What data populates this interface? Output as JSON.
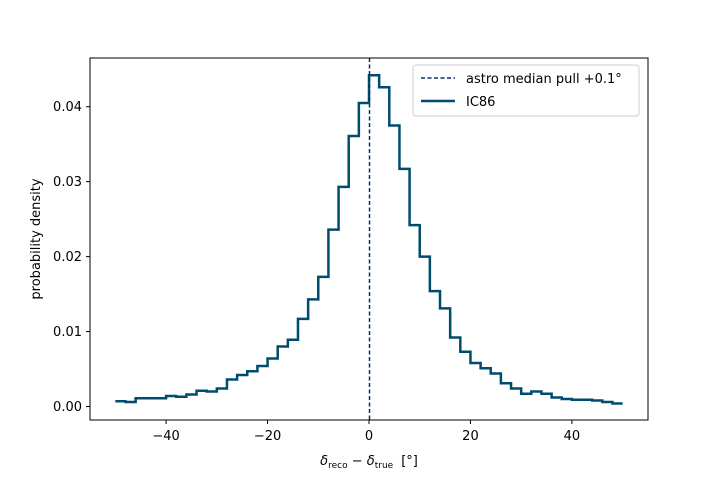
{
  "chart_data": {
    "type": "histogram",
    "xlabel_parts": {
      "reco_sym": "δ",
      "reco_sub": "reco",
      "minus": " − ",
      "true_sym": "δ",
      "true_sub": "true",
      "unit": "[°]"
    },
    "ylabel": "probability density",
    "xlim": [
      -55,
      55
    ],
    "ylim": [
      -0.0018,
      0.0465
    ],
    "xticks": [
      -40,
      -20,
      0,
      20,
      40
    ],
    "xtick_labels": [
      "−40",
      "−20",
      "0",
      "20",
      "40"
    ],
    "yticks": [
      0.0,
      0.01,
      0.02,
      0.03,
      0.04
    ],
    "ytick_labels": [
      "0.00",
      "0.01",
      "0.02",
      "0.03",
      "0.04"
    ],
    "grid": false,
    "legend_position": "upper right",
    "legend": {
      "median_label": "astro median pull +0.1°",
      "series_label": "IC86"
    },
    "median_line": {
      "x": 0.1,
      "color": "#08306b",
      "style": "dashed"
    },
    "series": [
      {
        "name": "IC86",
        "color": "#004c6d",
        "bin_edges": [
          -50,
          -48,
          -46,
          -44,
          -42,
          -40,
          -38,
          -36,
          -34,
          -32,
          -30,
          -28,
          -26,
          -24,
          -22,
          -20,
          -18,
          -16,
          -14,
          -12,
          -10,
          -8,
          -6,
          -4,
          -2,
          0,
          2,
          4,
          6,
          8,
          10,
          12,
          14,
          16,
          18,
          20,
          22,
          24,
          26,
          28,
          30,
          32,
          34,
          36,
          38,
          40,
          42,
          44,
          46,
          48,
          50
        ],
        "values": [
          0.0007,
          0.0006,
          0.0011,
          0.0011,
          0.0011,
          0.0014,
          0.0013,
          0.0016,
          0.0021,
          0.002,
          0.0024,
          0.0036,
          0.0042,
          0.0047,
          0.0054,
          0.0064,
          0.008,
          0.0089,
          0.0117,
          0.0143,
          0.0173,
          0.0236,
          0.0293,
          0.0361,
          0.0405,
          0.0442,
          0.0426,
          0.0375,
          0.0317,
          0.0242,
          0.02,
          0.0154,
          0.0131,
          0.0092,
          0.0073,
          0.0058,
          0.0051,
          0.0044,
          0.0031,
          0.0024,
          0.0017,
          0.002,
          0.0017,
          0.0012,
          0.001,
          0.0009,
          0.0009,
          0.0008,
          0.0006,
          0.0004
        ]
      }
    ]
  }
}
